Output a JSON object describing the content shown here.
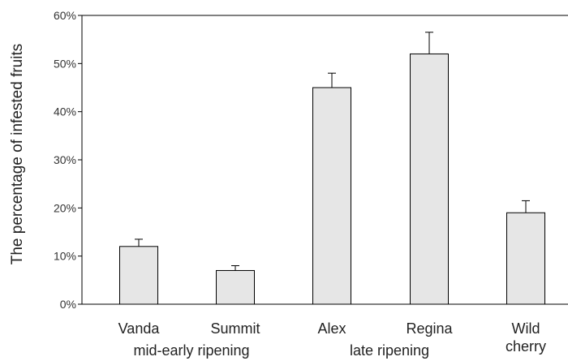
{
  "chart_data": {
    "type": "bar",
    "title": "",
    "xlabel": "",
    "ylabel": "The percentage of infested fruits",
    "ylim": [
      0,
      60
    ],
    "yticks": [
      "0%",
      "10%",
      "20%",
      "30%",
      "40%",
      "50%",
      "60%"
    ],
    "grid": false,
    "categories": [
      "Vanda",
      "Summit",
      "Alex",
      "Regina",
      "Wild cherry"
    ],
    "category_lines": [
      [
        "Vanda"
      ],
      [
        "Summit"
      ],
      [
        "Alex"
      ],
      [
        "Regina"
      ],
      [
        "Wild",
        "cherry"
      ]
    ],
    "values": [
      12,
      7,
      45,
      52,
      19
    ],
    "error_upper": [
      1.5,
      1.0,
      3.0,
      4.5,
      2.5
    ],
    "groups": [
      {
        "label": "mid-early ripening",
        "categories": [
          "Vanda",
          "Summit"
        ]
      },
      {
        "label": "late ripening",
        "categories": [
          "Alex",
          "Regina"
        ]
      }
    ],
    "bar_color": "#e6e6e6",
    "edge_color": "#000000"
  }
}
